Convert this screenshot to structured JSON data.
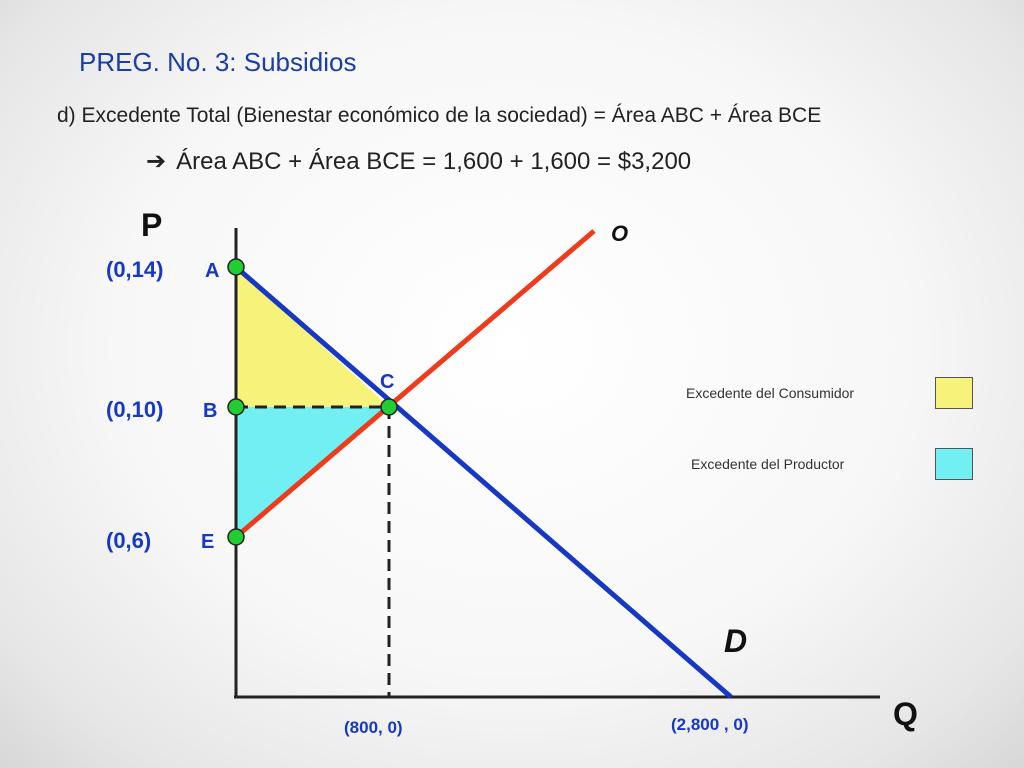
{
  "title": "PREG. No. 3: Subsidios",
  "line1": "d) Excedente Total (Bienestar económico de la sociedad) = Área ABC + Área BCE",
  "line2": "Área ABC + Área BCE = 1,600 + 1,600 = $3,200",
  "axes": {
    "y_label": "P",
    "x_label": "Q"
  },
  "curves": {
    "supply": "O",
    "demand": "D"
  },
  "points": {
    "A": {
      "label": "A",
      "coord": "(0,14)"
    },
    "B": {
      "label": "B",
      "coord": "(0,10)"
    },
    "C": {
      "label": "C"
    },
    "E": {
      "label": "E",
      "coord": "(0,6)"
    }
  },
  "x_marks": {
    "q800": "(800, 0)",
    "q2800": "(2,800 , 0)"
  },
  "legend": {
    "consumer": "Excedente del Consumidor",
    "producer": "Excedente del Productor"
  },
  "colors": {
    "supply": "#ee3b1b",
    "demand": "#1638c4",
    "consumer_surplus": "#f6f27a",
    "producer_surplus": "#72eff3",
    "point": "#22cc33",
    "title": "#1a3ea8"
  }
}
